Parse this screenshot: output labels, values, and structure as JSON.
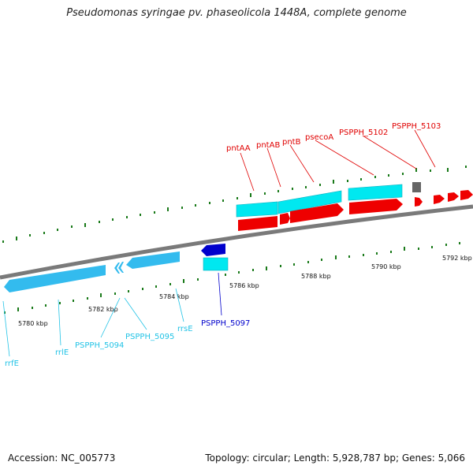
{
  "title": "Pseudomonas syringae pv. phaseolicola 1448A, complete genome",
  "footer": {
    "accession": "Accession: NC_005773",
    "summary": "Topology: circular; Length: 5,928,787 bp; Genes: 5,066"
  },
  "colors": {
    "forward_gene": "#ee0000",
    "reverse_gene": "#33bbee",
    "rna": "#00e8f0",
    "selected": "#0000cc",
    "pseudo": "#666666",
    "backbone": "#777777",
    "tick": "#1a7a1a"
  },
  "tick_labels": [
    "5780 kbp",
    "5782 kbp",
    "5784 kbp",
    "5786 kbp",
    "5788 kbp",
    "5790 kbp",
    "5792 kbp"
  ],
  "gene_labels": {
    "forward": [
      "pntAA",
      "pntAB",
      "pntB",
      "psecoA",
      "PSPPH_5102",
      "PSPPH_5103"
    ],
    "reverse": [
      "rrfE",
      "rrlE",
      "PSPPH_5094",
      "PSPPH_5095",
      "rrsE"
    ],
    "selected": "PSPPH_5097"
  }
}
